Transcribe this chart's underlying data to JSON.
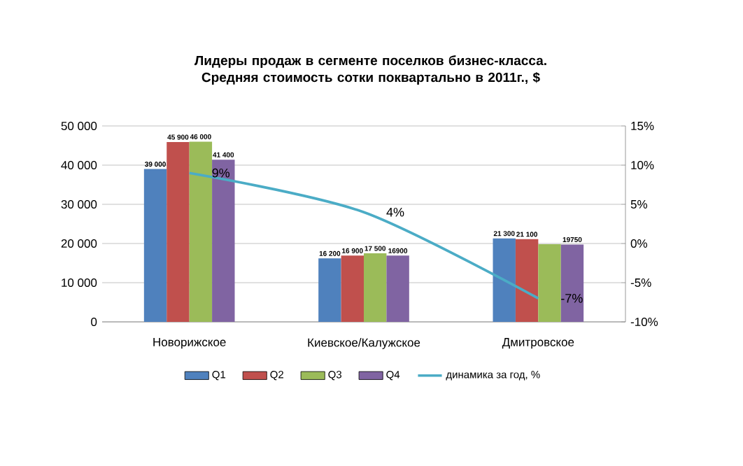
{
  "chart_data": {
    "type": "bar",
    "title": "Лидеры продаж в сегменте поселков бизнес-класса. Средняя стоимость сотки поквартально  в 2011г.,  $",
    "categories": [
      "Новорижское",
      "Киевское/Калужское",
      "Дмитровское"
    ],
    "series": [
      {
        "name": "Q1",
        "color": "#4f81bd",
        "values": [
          39000,
          16200,
          21300
        ],
        "value_labels": [
          "39 000",
          "16 200",
          "21 300"
        ]
      },
      {
        "name": "Q2",
        "color": "#c0504d",
        "values": [
          45900,
          16900,
          21100
        ],
        "value_labels": [
          "45 900",
          "16 900",
          "21 100"
        ]
      },
      {
        "name": "Q3",
        "color": "#9bbb59",
        "values": [
          46000,
          17500,
          19800
        ],
        "value_labels": [
          "46 000",
          "17 500",
          null
        ]
      },
      {
        "name": "Q4",
        "color": "#8064a2",
        "values": [
          41400,
          16900,
          19750
        ],
        "value_labels": [
          "41 400",
          "16900",
          "19750"
        ]
      },
      {
        "name": "динамика за год, %",
        "type": "line",
        "axis": "y2",
        "color": "#4bacc6",
        "values": [
          9,
          4,
          -7
        ],
        "value_labels": [
          "9%",
          "4%",
          "-7%"
        ]
      }
    ],
    "ylim": [
      0,
      50000
    ],
    "yticks": [
      {
        "value": 0,
        "label": "0"
      },
      {
        "value": 10000,
        "label": "10 000"
      },
      {
        "value": 20000,
        "label": "20 000"
      },
      {
        "value": 30000,
        "label": "30 000"
      },
      {
        "value": 40000,
        "label": "40 000"
      },
      {
        "value": 50000,
        "label": "50 000"
      }
    ],
    "y2lim": [
      -10,
      15
    ],
    "y2ticks": [
      {
        "value": -10,
        "label": "-10%"
      },
      {
        "value": -5,
        "label": "-5%"
      },
      {
        "value": 0,
        "label": "0%"
      },
      {
        "value": 5,
        "label": "5%"
      },
      {
        "value": 10,
        "label": "10%"
      },
      {
        "value": 15,
        "label": "15%"
      }
    ],
    "grid": "y",
    "legend": "bottom"
  }
}
